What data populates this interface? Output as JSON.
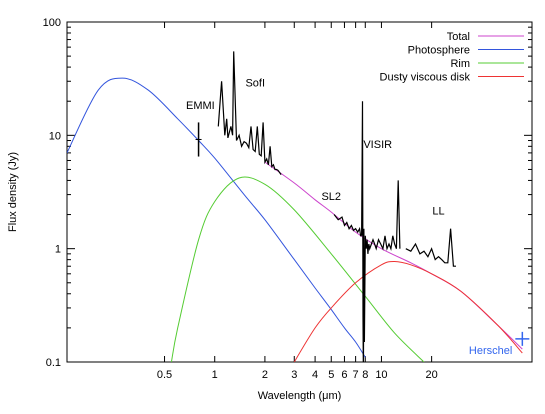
{
  "chart_data": {
    "type": "line",
    "xlabel": "Wavelength (μm)",
    "ylabel": "Flux density (Jy)",
    "x_scale": "log",
    "y_scale": "log",
    "xlim": [
      0.13,
      80
    ],
    "ylim": [
      0.1,
      100
    ],
    "x_ticks": [
      {
        "value": 0.5,
        "label": "0.5"
      },
      {
        "value": 1,
        "label": "1"
      },
      {
        "value": 2,
        "label": "2"
      },
      {
        "value": 3,
        "label": "3"
      },
      {
        "value": 4,
        "label": "4"
      },
      {
        "value": 5,
        "label": "5"
      },
      {
        "value": 6,
        "label": "6"
      },
      {
        "value": 7,
        "label": "7"
      },
      {
        "value": 8,
        "label": "8"
      },
      {
        "value": 10,
        "label": "10"
      },
      {
        "value": 20,
        "label": "20"
      }
    ],
    "y_ticks": [
      {
        "value": 0.1,
        "label": "0.1"
      },
      {
        "value": 1,
        "label": "1"
      },
      {
        "value": 10,
        "label": "10"
      },
      {
        "value": 100,
        "label": "100"
      }
    ],
    "legend_position": "top-right",
    "series": [
      {
        "name": "Total",
        "color": "#cc44cc",
        "x": [
          2.0,
          3.0,
          4.0,
          5.0,
          7.0,
          10.0,
          15.0,
          20.0,
          30.0,
          50.0,
          70.0
        ],
        "y": [
          5.8,
          3.8,
          2.7,
          2.1,
          1.4,
          1.0,
          0.75,
          0.6,
          0.42,
          0.21,
          0.13
        ]
      },
      {
        "name": "Photosphere",
        "color": "#3355dd",
        "x": [
          0.13,
          0.2,
          0.28,
          0.4,
          0.6,
          0.8,
          1.0,
          1.5,
          2.0,
          3.0,
          4.0,
          5.0,
          6.0,
          7.0,
          8.0
        ],
        "y": [
          7.0,
          25.0,
          32.0,
          25.0,
          14.0,
          9.0,
          6.3,
          3.0,
          1.8,
          0.8,
          0.45,
          0.29,
          0.2,
          0.15,
          0.11
        ]
      },
      {
        "name": "Rim",
        "color": "#55cc33",
        "x": [
          0.55,
          0.6,
          0.8,
          1.0,
          1.4,
          2.0,
          3.0,
          5.0,
          8.0,
          12.0,
          18.0
        ],
        "y": [
          0.1,
          0.2,
          1.2,
          2.6,
          4.2,
          3.7,
          2.2,
          0.9,
          0.38,
          0.18,
          0.1
        ]
      },
      {
        "name": "Dusty viscous disk",
        "color": "#ee3333",
        "x": [
          3.0,
          4.0,
          5.0,
          7.0,
          10.0,
          12.0,
          15.0,
          20.0,
          30.0,
          50.0,
          70.0
        ],
        "y": [
          0.1,
          0.2,
          0.3,
          0.5,
          0.72,
          0.77,
          0.72,
          0.6,
          0.42,
          0.21,
          0.12
        ]
      }
    ],
    "observed_spectra": [
      {
        "label": "SofI",
        "x": [
          1.05,
          1.1,
          1.15,
          1.18,
          1.2,
          1.25,
          1.28,
          1.3,
          1.35,
          1.4,
          1.45,
          1.5,
          1.55,
          1.6,
          1.65,
          1.7,
          1.75,
          1.8,
          1.85,
          1.9,
          1.95,
          2.0,
          2.05,
          2.1,
          2.15,
          2.2,
          2.25,
          2.3,
          2.35,
          2.4,
          2.45,
          2.5
        ],
        "y": [
          12.0,
          30.0,
          10.0,
          14.0,
          9.5,
          12.0,
          10.0,
          55.0,
          9.0,
          10.0,
          8.0,
          8.8,
          8.5,
          7.8,
          12.0,
          7.5,
          7.2,
          12.0,
          6.8,
          6.6,
          13.0,
          5.8,
          6.2,
          5.5,
          8.0,
          5.3,
          5.5,
          5.0,
          5.0,
          4.9,
          4.7,
          4.5
        ]
      },
      {
        "label": "SL2",
        "x": [
          5.2,
          5.5,
          5.8,
          6.0,
          6.2,
          6.4,
          6.6,
          6.8,
          7.0,
          7.2,
          7.4,
          7.5,
          7.6
        ],
        "y": [
          2.0,
          1.8,
          1.9,
          1.6,
          1.7,
          1.5,
          1.6,
          1.45,
          1.5,
          1.4,
          1.5,
          1.3,
          1.3
        ]
      },
      {
        "label": "VISIR",
        "x": [
          7.6,
          7.7,
          7.75,
          7.8,
          7.85,
          7.9,
          8.0,
          8.1,
          8.2,
          8.3,
          8.4,
          8.5,
          8.7,
          8.9,
          9.1,
          9.3,
          9.6,
          9.9,
          10.2,
          10.5,
          10.8,
          11.1,
          11.4,
          11.7,
          12.0,
          12.3,
          12.6,
          12.9
        ],
        "y": [
          1.3,
          20.0,
          0.25,
          0.07,
          1.5,
          0.15,
          1.3,
          1.0,
          1.2,
          0.9,
          1.1,
          1.0,
          1.1,
          1.2,
          1.1,
          1.0,
          1.2,
          1.1,
          1.0,
          1.3,
          1.0,
          1.1,
          1.0,
          1.3,
          1.1,
          1.0,
          4.0,
          1.0
        ]
      },
      {
        "label": "LL",
        "x": [
          14.0,
          15.0,
          16.0,
          17.0,
          18.0,
          19.0,
          20.0,
          21.0,
          22.0,
          23.0,
          24.0,
          25.0,
          26.0,
          27.0,
          28.0
        ],
        "y": [
          1.0,
          0.95,
          1.1,
          0.9,
          0.95,
          0.85,
          1.0,
          0.8,
          0.85,
          0.8,
          0.75,
          0.75,
          1.5,
          0.7,
          0.7
        ]
      }
    ],
    "spectrum_color": "#000000",
    "annotations": [
      {
        "text": "EMMI",
        "x": 0.82,
        "y": 17.0
      },
      {
        "text": "SofI",
        "x": 1.75,
        "y": 27.0
      },
      {
        "text": "SL2",
        "x": 5.0,
        "y": 2.7
      },
      {
        "text": "VISIR",
        "x": 9.5,
        "y": 7.7
      },
      {
        "text": "LL",
        "x": 22.0,
        "y": 2.0
      }
    ],
    "emmi_bar": {
      "x": 0.8,
      "y_low": 6.5,
      "y_high": 13.0
    },
    "herschel": {
      "label": "Herschel",
      "color": "#3366ee",
      "x": 70,
      "y": 0.16
    }
  }
}
